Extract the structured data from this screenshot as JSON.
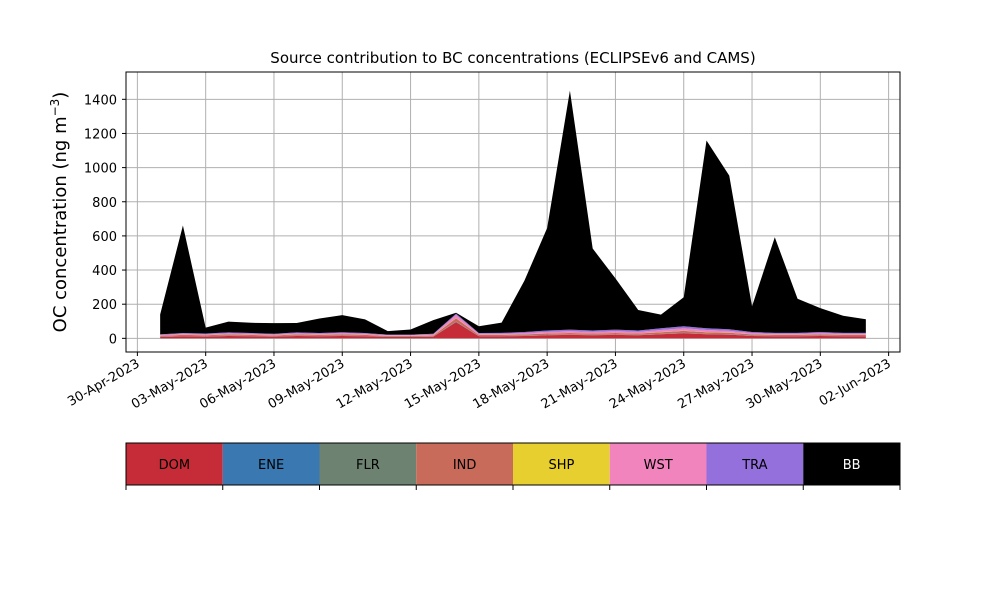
{
  "chart_data": {
    "type": "area",
    "title": "Source contribution to BC concentrations (ECLIPSEv6 and CAMS)",
    "ylabel": "OC concentration (ng m$^{-3}$)",
    "ylabel_parts": {
      "main": "OC concentration (ng m",
      "sup": "−3",
      "end": ")"
    },
    "xlabel": "",
    "ylim": [
      -80,
      1560
    ],
    "xlim": [
      "2023-04-29T12:00",
      "2023-06-02T12:00"
    ],
    "grid": true,
    "yticks": [
      0,
      200,
      400,
      600,
      800,
      1000,
      1200,
      1400
    ],
    "xticks": [
      {
        "date": "2023-04-30",
        "label": "30-Apr-2023"
      },
      {
        "date": "2023-05-03",
        "label": "03-May-2023"
      },
      {
        "date": "2023-05-06",
        "label": "06-May-2023"
      },
      {
        "date": "2023-05-09",
        "label": "09-May-2023"
      },
      {
        "date": "2023-05-12",
        "label": "12-May-2023"
      },
      {
        "date": "2023-05-15",
        "label": "15-May-2023"
      },
      {
        "date": "2023-05-18",
        "label": "18-May-2023"
      },
      {
        "date": "2023-05-21",
        "label": "21-May-2023"
      },
      {
        "date": "2023-05-24",
        "label": "24-May-2023"
      },
      {
        "date": "2023-05-27",
        "label": "27-May-2023"
      },
      {
        "date": "2023-05-30",
        "label": "30-May-2023"
      },
      {
        "date": "2023-06-02",
        "label": "02-Jun-2023"
      }
    ],
    "x": [
      "2023-05-01",
      "2023-05-02",
      "2023-05-03",
      "2023-05-04",
      "2023-05-05",
      "2023-05-06",
      "2023-05-07",
      "2023-05-08",
      "2023-05-09",
      "2023-05-10",
      "2023-05-11",
      "2023-05-12",
      "2023-05-13",
      "2023-05-14",
      "2023-05-15",
      "2023-05-16",
      "2023-05-17",
      "2023-05-18",
      "2023-05-19",
      "2023-05-20",
      "2023-05-21",
      "2023-05-22",
      "2023-05-23",
      "2023-05-24",
      "2023-05-25",
      "2023-05-26",
      "2023-05-27",
      "2023-05-28",
      "2023-05-29",
      "2023-05-30",
      "2023-05-31",
      "2023-06-01"
    ],
    "series": [
      {
        "name": "DOM",
        "color": "#c62b38",
        "values": [
          8,
          12,
          10,
          14,
          12,
          10,
          14,
          12,
          14,
          12,
          8,
          8,
          10,
          95,
          12,
          12,
          14,
          18,
          20,
          18,
          20,
          18,
          24,
          30,
          24,
          22,
          14,
          12,
          12,
          14,
          12,
          12
        ]
      },
      {
        "name": "ENE",
        "color": "#3a78b2",
        "values": [
          1,
          1,
          1,
          1,
          1,
          1,
          1,
          1,
          1,
          1,
          1,
          1,
          1,
          2,
          1,
          1,
          1,
          1,
          1,
          1,
          1,
          1,
          1,
          1,
          1,
          1,
          1,
          1,
          1,
          1,
          1,
          1
        ]
      },
      {
        "name": "FLR",
        "color": "#6d8270",
        "values": [
          1,
          1,
          1,
          1,
          1,
          1,
          1,
          1,
          1,
          1,
          1,
          1,
          1,
          1,
          1,
          1,
          1,
          1,
          1,
          1,
          1,
          1,
          1,
          1,
          1,
          1,
          1,
          1,
          1,
          1,
          1,
          1
        ]
      },
      {
        "name": "IND",
        "color": "#c96b5a",
        "values": [
          5,
          6,
          6,
          7,
          6,
          5,
          7,
          6,
          7,
          6,
          4,
          4,
          5,
          20,
          6,
          6,
          7,
          8,
          9,
          8,
          9,
          8,
          10,
          12,
          10,
          9,
          7,
          6,
          6,
          7,
          6,
          6
        ]
      },
      {
        "name": "SHP",
        "color": "#e6cf2e",
        "values": [
          1,
          1,
          1,
          1,
          1,
          1,
          1,
          1,
          1,
          1,
          1,
          1,
          1,
          1,
          1,
          1,
          1,
          1,
          1,
          1,
          1,
          1,
          1,
          1,
          1,
          1,
          1,
          1,
          1,
          1,
          1,
          1
        ]
      },
      {
        "name": "WST",
        "color": "#f183bd",
        "values": [
          4,
          6,
          5,
          6,
          6,
          5,
          6,
          6,
          7,
          6,
          4,
          4,
          5,
          18,
          6,
          6,
          7,
          9,
          10,
          9,
          10,
          9,
          12,
          14,
          12,
          10,
          7,
          6,
          6,
          7,
          6,
          6
        ]
      },
      {
        "name": "TRA",
        "color": "#9370db",
        "values": [
          3,
          4,
          4,
          5,
          4,
          4,
          5,
          4,
          5,
          4,
          3,
          3,
          4,
          8,
          4,
          5,
          6,
          8,
          9,
          8,
          9,
          8,
          10,
          12,
          10,
          9,
          6,
          5,
          5,
          6,
          5,
          5
        ]
      },
      {
        "name": "BB",
        "color": "#000000",
        "values": [
          117,
          630,
          35,
          63,
          60,
          62,
          55,
          85,
          100,
          80,
          20,
          30,
          80,
          5,
          40,
          60,
          300,
          600,
          1400,
          480,
          300,
          120,
          80,
          170,
          1100,
          900,
          150,
          560,
          200,
          140,
          100,
          80
        ]
      }
    ],
    "legend": {
      "placement": "below",
      "entries": [
        {
          "label": "DOM",
          "color": "#c62b38",
          "text_color": "#000000"
        },
        {
          "label": "ENE",
          "color": "#3a78b2",
          "text_color": "#000000"
        },
        {
          "label": "FLR",
          "color": "#6d8270",
          "text_color": "#000000"
        },
        {
          "label": "IND",
          "color": "#c96b5a",
          "text_color": "#000000"
        },
        {
          "label": "SHP",
          "color": "#e6cf2e",
          "text_color": "#000000"
        },
        {
          "label": "WST",
          "color": "#f183bd",
          "text_color": "#000000"
        },
        {
          "label": "TRA",
          "color": "#9370db",
          "text_color": "#000000"
        },
        {
          "label": "BB",
          "color": "#000000",
          "text_color": "#ffffff"
        }
      ]
    }
  }
}
